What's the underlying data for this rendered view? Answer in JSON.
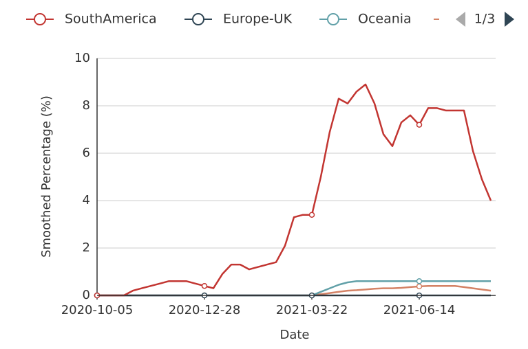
{
  "chart_data": {
    "type": "line",
    "x_label": "Date",
    "y_label": "Smoothed Percentage (%)",
    "legend_page": "1/3",
    "categories": [
      "2020-10-05",
      null,
      null,
      null,
      null,
      null,
      null,
      null,
      null,
      null,
      null,
      null,
      "2020-12-28",
      null,
      null,
      null,
      null,
      null,
      null,
      null,
      null,
      null,
      null,
      null,
      "2021-03-22",
      null,
      null,
      null,
      null,
      null,
      null,
      null,
      null,
      null,
      null,
      null,
      "2021-06-14",
      null,
      null,
      null,
      null,
      null,
      null,
      null,
      null
    ],
    "series": [
      {
        "name": "SouthAmerica",
        "color": "#c23531",
        "values": [
          0,
          0,
          0,
          0,
          0.2,
          0.3,
          0.4,
          0.5,
          0.6,
          0.6,
          0.6,
          0.5,
          0.4,
          0.3,
          0.9,
          1.3,
          1.3,
          1.1,
          1.2,
          1.3,
          1.4,
          2.1,
          3.3,
          3.4,
          3.4,
          5.0,
          6.9,
          8.3,
          8.1,
          8.6,
          8.9,
          8.1,
          6.8,
          6.3,
          7.3,
          7.6,
          7.2,
          7.9,
          7.9,
          7.8,
          7.8,
          7.8,
          6.1,
          4.9,
          4.0
        ]
      },
      {
        "name": "Europe-UK",
        "color": "#2f4554",
        "values": [
          0,
          0,
          0,
          0,
          0,
          0,
          0,
          0,
          0,
          0,
          0,
          0,
          0,
          0,
          0,
          0,
          0,
          0,
          0,
          0,
          0,
          0,
          0,
          0,
          0,
          0,
          0,
          0,
          0,
          0,
          0,
          0,
          0,
          0,
          0,
          0,
          0,
          0,
          0,
          0,
          0,
          0,
          0,
          0,
          0
        ]
      },
      {
        "name": "Oceania",
        "color": "#61a0a8",
        "values": [
          0,
          0,
          0,
          0,
          0,
          0,
          0,
          0,
          0,
          0,
          0,
          0,
          0,
          0,
          0,
          0,
          0,
          0,
          0,
          0,
          0,
          0,
          0,
          0,
          0,
          0.15,
          0.3,
          0.45,
          0.55,
          0.6,
          0.6,
          0.6,
          0.6,
          0.6,
          0.6,
          0.6,
          0.6,
          0.6,
          0.6,
          0.6,
          0.6,
          0.6,
          0.6,
          0.6,
          0.6
        ]
      },
      {
        "color": "#d48265",
        "values": [
          0,
          0,
          0,
          0,
          0,
          0,
          0,
          0,
          0,
          0,
          0,
          0,
          0,
          0,
          0,
          0,
          0,
          0,
          0,
          0,
          0,
          0,
          0,
          0,
          0,
          0.05,
          0.1,
          0.15,
          0.2,
          0.22,
          0.25,
          0.28,
          0.3,
          0.3,
          0.32,
          0.35,
          0.38,
          0.4,
          0.4,
          0.4,
          0.4,
          0.35,
          0.3,
          0.25,
          0.2
        ]
      }
    ],
    "ylim": [
      0,
      10
    ],
    "yticks": [
      0,
      2,
      4,
      6,
      8,
      10
    ],
    "grid": true
  }
}
